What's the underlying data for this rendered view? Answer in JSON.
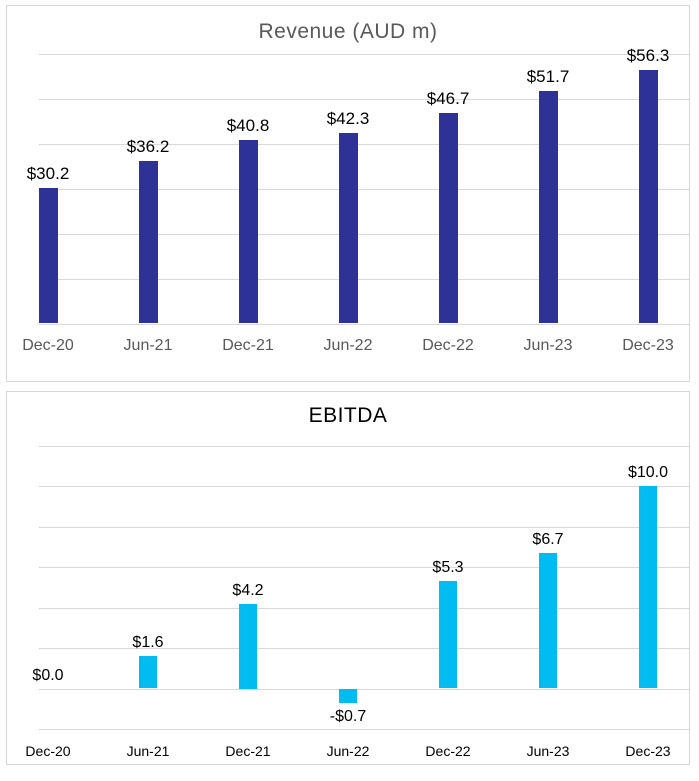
{
  "page": {
    "background": "#FFFFFF"
  },
  "chart_data": [
    {
      "type": "bar",
      "title": "Revenue (AUD m)",
      "categories": [
        "Dec-20",
        "Jun-21",
        "Dec-21",
        "Jun-22",
        "Dec-22",
        "Jun-23",
        "Dec-23"
      ],
      "values": [
        30.2,
        36.2,
        40.8,
        42.3,
        46.7,
        51.7,
        56.3
      ],
      "data_labels": [
        "$30.2",
        "$36.2",
        "$40.8",
        "$42.3",
        "$46.7",
        "$51.7",
        "$56.3"
      ],
      "ylim": [
        0,
        60
      ],
      "grid_step": 10,
      "grid": true,
      "legend": false,
      "xlabel": "",
      "ylabel": "",
      "bar_color": "#2E3296",
      "title_color": "#595959",
      "axis_label_color": "#595959",
      "data_label_color": "#000000",
      "gridline_color": "#D9D9D9",
      "panel_border_color": "#D7D7D7"
    },
    {
      "type": "bar",
      "title": "EBITDA",
      "categories": [
        "Dec-20",
        "Jun-21",
        "Dec-21",
        "Jun-22",
        "Dec-22",
        "Jun-23",
        "Dec-23"
      ],
      "values": [
        0.0,
        1.6,
        4.2,
        -0.7,
        5.3,
        6.7,
        10.0
      ],
      "data_labels": [
        "$0.0",
        "$1.6",
        "$4.2",
        "-$0.7",
        "$5.3",
        "$6.7",
        "$10.0"
      ],
      "ylim": [
        -2,
        12
      ],
      "grid_step": 2,
      "grid": true,
      "legend": false,
      "xlabel": "",
      "ylabel": "",
      "bar_color": "#00BCF0",
      "title_color": "#000000",
      "axis_label_color": "#000000",
      "data_label_color": "#000000",
      "gridline_color": "#D9D9D9",
      "panel_border_color": "#D7D7D7"
    }
  ]
}
